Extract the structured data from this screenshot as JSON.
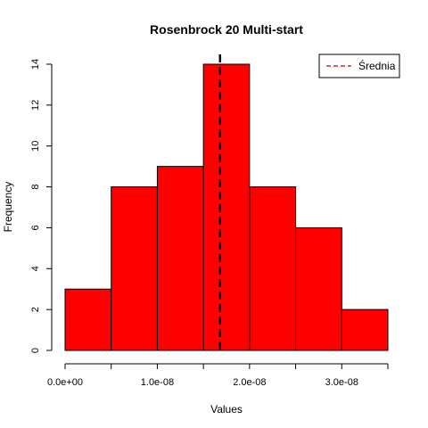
{
  "chart_data": {
    "type": "bar",
    "title": "Rosenbrock 20 Multi-start",
    "xlabel": "Values",
    "ylabel": "Frequency",
    "bins": [
      {
        "start": 0.0,
        "end": 5e-09,
        "count": 3
      },
      {
        "start": 5e-09,
        "end": 1e-08,
        "count": 8
      },
      {
        "start": 1e-08,
        "end": 1.5e-08,
        "count": 9
      },
      {
        "start": 1.5e-08,
        "end": 2e-08,
        "count": 14
      },
      {
        "start": 2e-08,
        "end": 2.5e-08,
        "count": 8
      },
      {
        "start": 2.5e-08,
        "end": 3e-08,
        "count": 6
      },
      {
        "start": 3e-08,
        "end": 3.5e-08,
        "count": 2
      }
    ],
    "xlim": [
      0,
      3.5e-08
    ],
    "ylim": [
      0,
      14
    ],
    "x_ticks": [
      {
        "value": 0.0,
        "label": "0.0e+00"
      },
      {
        "value": 5e-09,
        "label": ""
      },
      {
        "value": 1e-08,
        "label": "1.0e-08"
      },
      {
        "value": 1.5e-08,
        "label": ""
      },
      {
        "value": 2e-08,
        "label": "2.0e-08"
      },
      {
        "value": 2.5e-08,
        "label": ""
      },
      {
        "value": 3e-08,
        "label": "3.0e-08"
      },
      {
        "value": 3.5e-08,
        "label": ""
      }
    ],
    "y_ticks": [
      {
        "value": 0,
        "label": "0"
      },
      {
        "value": 2,
        "label": "2"
      },
      {
        "value": 4,
        "label": "4"
      },
      {
        "value": 6,
        "label": "6"
      },
      {
        "value": 8,
        "label": "8"
      },
      {
        "value": 10,
        "label": "10"
      },
      {
        "value": 12,
        "label": "12"
      },
      {
        "value": 14,
        "label": "14"
      }
    ],
    "mean_line": {
      "value": 1.68e-08,
      "label": "Średnia",
      "color": "#000000",
      "style": "dashed"
    },
    "bar_color": "#ff0000",
    "legend_line_color": "#cc0000",
    "legend_position": "top-right",
    "grid": false
  }
}
